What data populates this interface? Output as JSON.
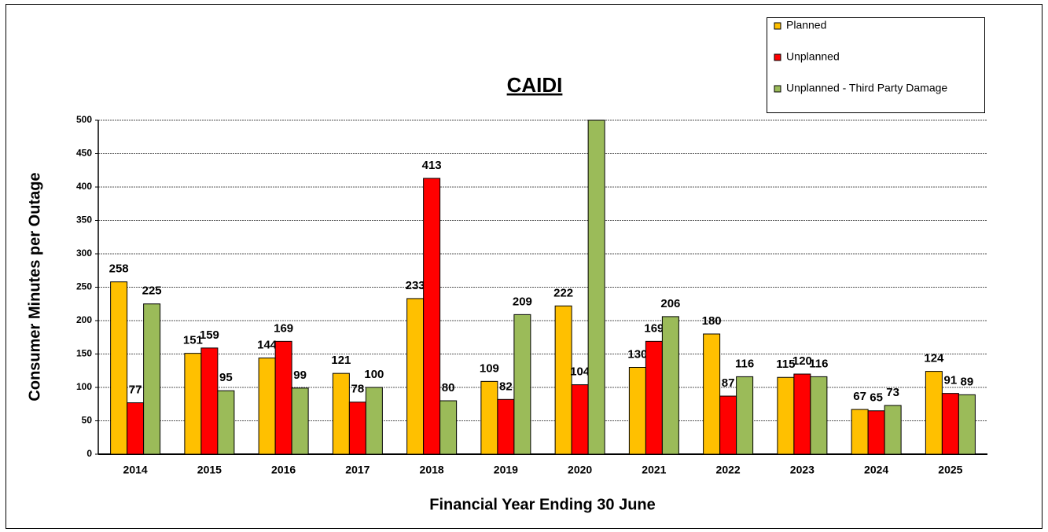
{
  "chart_data": {
    "type": "bar",
    "title": "CAIDI",
    "x_label": "Financial Year Ending 30 June",
    "y_label": "Consumer Minutes per Outage",
    "categories": [
      "2014",
      "2015",
      "2016",
      "2017",
      "2018",
      "2019",
      "2020",
      "2021",
      "2022",
      "2023",
      "2024",
      "2025"
    ],
    "series": [
      {
        "name": "Planned",
        "color": "#ffc000",
        "values": [
          258,
          151,
          144,
          121,
          233,
          109,
          222,
          130,
          180,
          115,
          67,
          124
        ]
      },
      {
        "name": "Unplanned",
        "color": "#ff0000",
        "values": [
          77,
          159,
          169,
          78,
          413,
          82,
          104,
          169,
          87,
          120,
          65,
          91
        ]
      },
      {
        "name": "Unplanned - Third Party Damage",
        "color": "#9bbb59",
        "values": [
          225,
          95,
          99,
          100,
          80,
          209,
          500,
          206,
          116,
          116,
          73,
          89
        ]
      }
    ],
    "ylim": [
      0,
      500
    ],
    "yticks": [
      0,
      50,
      100,
      150,
      200,
      250,
      300,
      350,
      400,
      450,
      500
    ],
    "grid": true,
    "legend": "top-right"
  }
}
